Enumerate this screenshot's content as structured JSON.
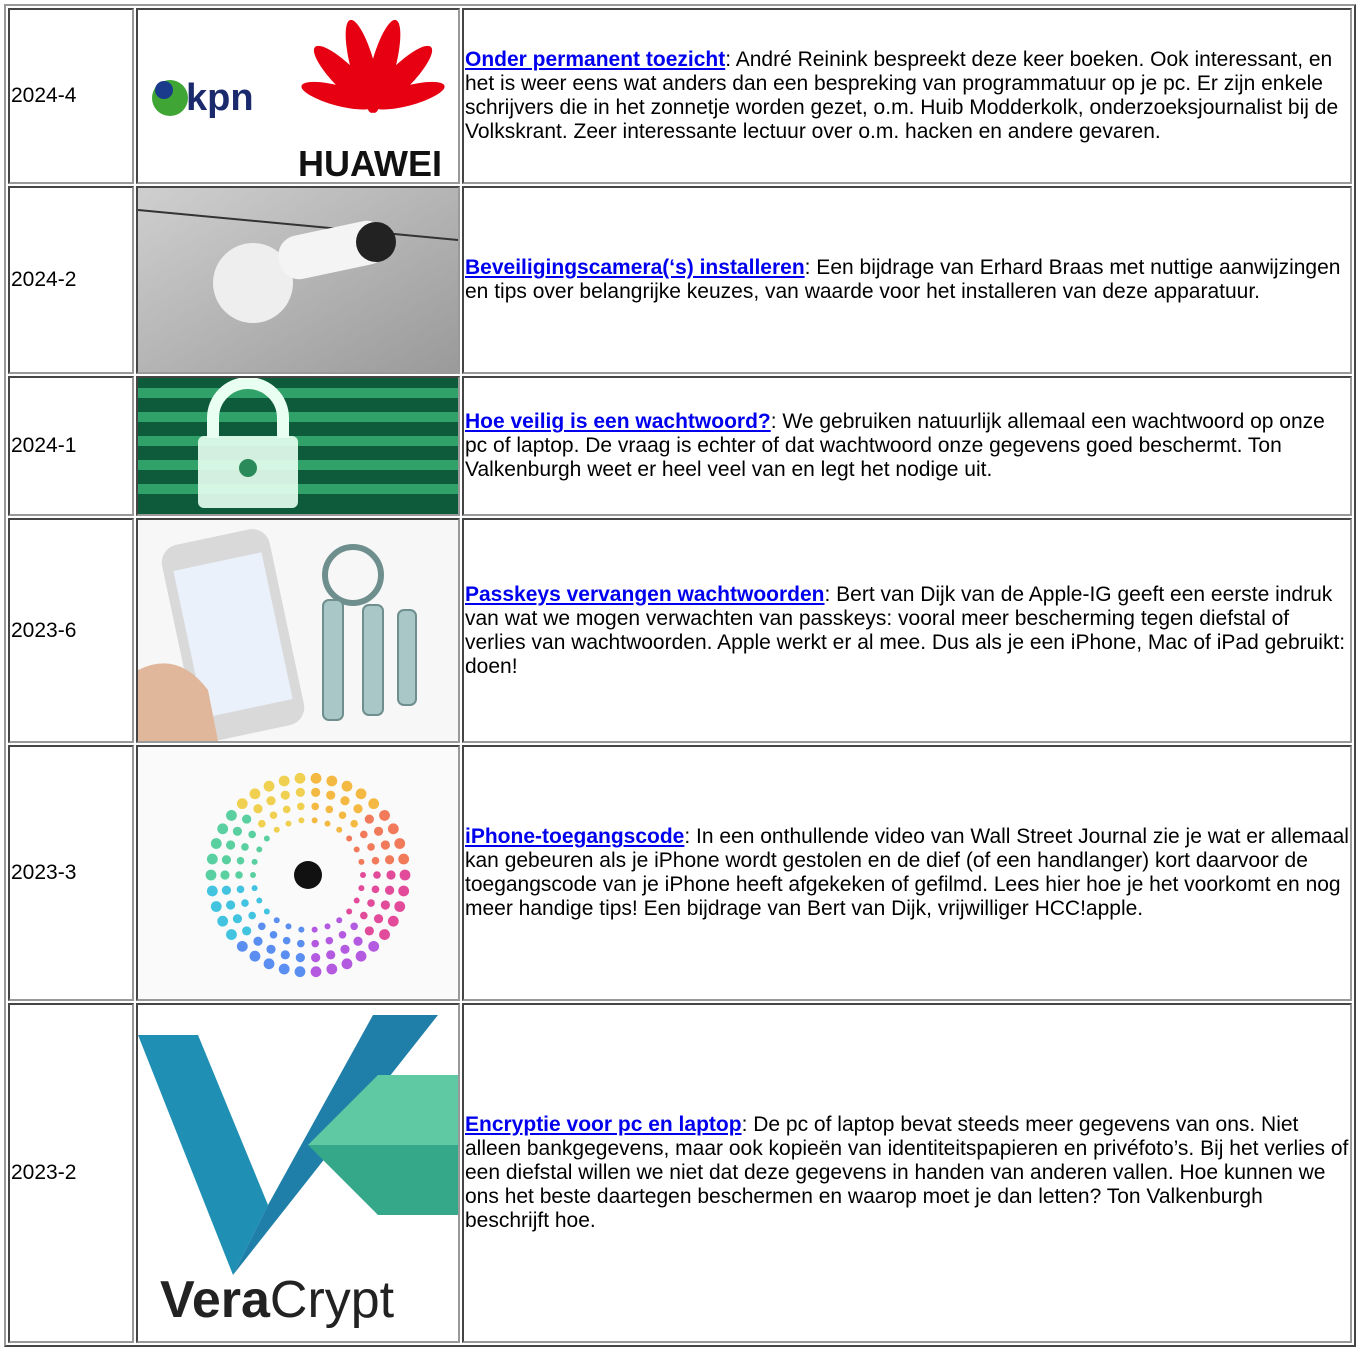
{
  "table": {
    "rows": [
      {
        "date": "2024-4",
        "link": "Onder permanent toezicht",
        "text": ": André Reinink bespreekt deze keer boeken. Ook interessant, en het is weer eens wat anders dan een bespreking van programmatuur op je pc. Er zijn enkele schrijvers die in het zonnetje worden gezet, o.m. Huib Modderkolk, onderzoeksjournalist bij de Volkskrant. Zeer interessante lectuur over o.m. hacken en andere gevaren.",
        "image_labels": [
          "kpn",
          "HUAWEI"
        ]
      },
      {
        "date": "2024-2",
        "link": "Beveiligingscamera(‘s) installeren",
        "text": ": Een bijdrage van Erhard Braas met nuttige aanwijzingen en tips over belangrijke keuzes, van waarde voor het installeren van deze apparatuur."
      },
      {
        "date": "2024-1",
        "link": "Hoe veilig is een wachtwoord?",
        "text": ": We gebruiken natuurlijk allemaal een wachtwoord op onze pc of laptop. De vraag is echter of dat wachtwoord onze gegevens goed beschermt. Ton Valkenburgh weet er heel veel van en legt het nodige uit."
      },
      {
        "date": "2023-6",
        "link": "Passkeys vervangen wachtwoorden",
        "text": ": Bert van Dijk van de Apple-IG geeft een eerste indruk van wat we mogen verwachten van passkeys: vooral meer bescherming tegen diefstal of verlies van wachtwoorden. Apple werkt er al mee. Dus als je een iPhone, Mac of iPad gebruikt: doen!"
      },
      {
        "date": "2023-3",
        "link": "iPhone-toegangscode",
        "text": ": In een onthullende video van Wall Street Journal zie je wat er allemaal kan gebeuren als je iPhone wordt gestolen en de dief (of een handlanger) kort daarvoor de toegangscode van je iPhone heeft afgekeken of gefilmd. Lees hier hoe je het voorkomt en nog meer handige tips! Een bijdrage van Bert van Dijk, vrijwilliger HCC!apple."
      },
      {
        "date": "2023-2",
        "link": "Encryptie voor pc en laptop",
        "text": ": De pc of laptop bevat steeds meer gegevens van ons. Niet alleen bankgegevens, maar ook kopieën van identiteitspapieren en privéfoto’s. Bij het verlies of een diefstal willen we niet dat deze gegevens in handen van anderen vallen. Hoe kunnen we ons het beste daartegen beschermen en waarop moet je dan letten? Ton Valkenburgh beschrijft hoe.",
        "image_labels": [
          "Vera",
          "Crypt"
        ]
      }
    ]
  }
}
